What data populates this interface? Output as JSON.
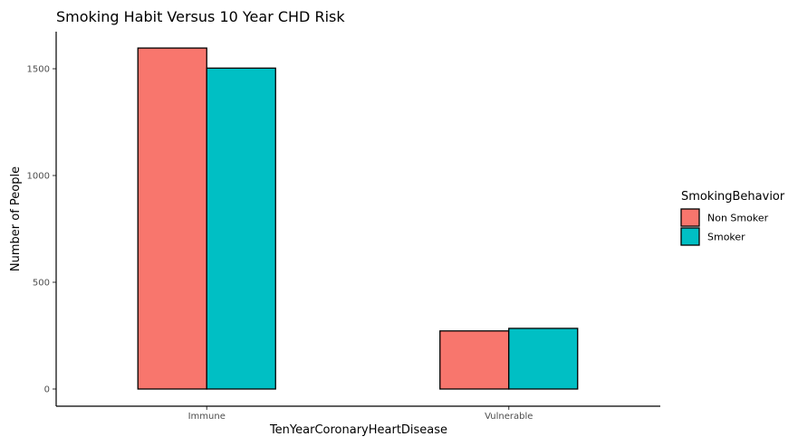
{
  "chart_data": {
    "type": "bar",
    "title": "Smoking Habit Versus 10 Year CHD Risk",
    "xlabel": "TenYearCoronaryHeartDisease",
    "ylabel": "Number of People",
    "categories": [
      "Immune",
      "Vulnerable"
    ],
    "series": [
      {
        "name": "Non Smoker",
        "values": [
          1597,
          272
        ],
        "color": "#F8766D"
      },
      {
        "name": "Smoker",
        "values": [
          1503,
          284
        ],
        "color": "#00BFC4"
      }
    ],
    "ylim": [
      0,
      1680
    ],
    "yticks": [
      0,
      500,
      1000,
      1500
    ],
    "ytick_labels": [
      "0",
      "500",
      "1000",
      "1500"
    ],
    "grid": false,
    "legend": {
      "title": "SmokingBehavior",
      "placement": "right"
    }
  }
}
